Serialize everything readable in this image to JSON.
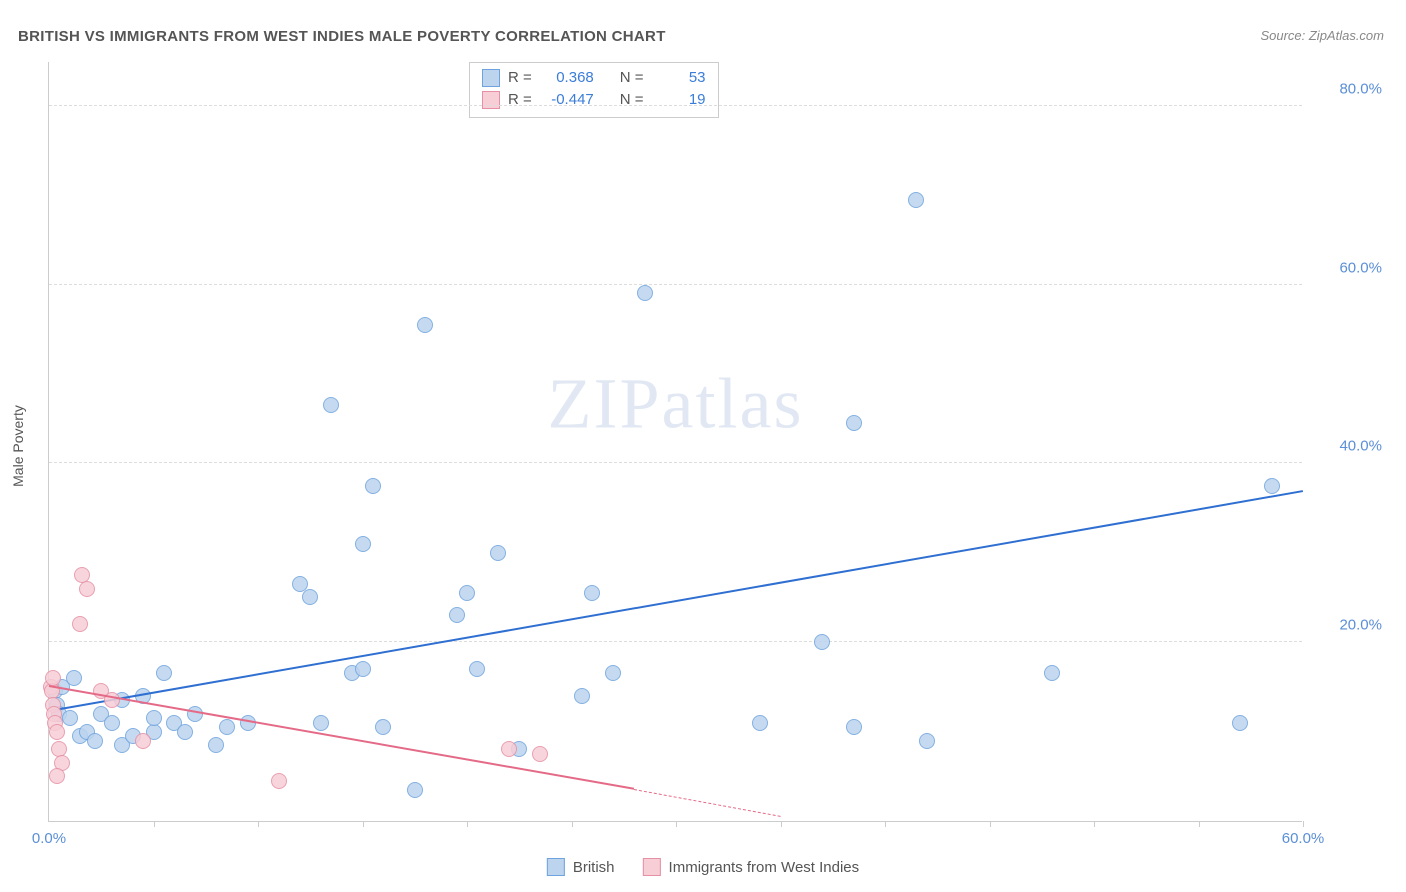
{
  "title": "BRITISH VS IMMIGRANTS FROM WEST INDIES MALE POVERTY CORRELATION CHART",
  "source_prefix": "Source: ",
  "source_name": "ZipAtlas.com",
  "watermark": "ZIPatlas",
  "ylabel": "Male Poverty",
  "chart": {
    "type": "scatter",
    "xlim": [
      0,
      60
    ],
    "ylim": [
      0,
      85
    ],
    "x_tick_step": 5,
    "x_tick_labels": {
      "0": "0.0%",
      "60": "60.0%"
    },
    "y_ticks": [
      20,
      40,
      60,
      80
    ],
    "y_tick_labels": [
      "20.0%",
      "40.0%",
      "60.0%",
      "80.0%"
    ],
    "grid_color": "#dddddd",
    "axis_color": "#cccccc",
    "background_color": "#ffffff",
    "point_radius": 8,
    "point_stroke_width": 1.5,
    "series": [
      {
        "name": "British",
        "fill": "#bcd4ee",
        "stroke": "#6ea3de",
        "r_value": "0.368",
        "n_value": "53",
        "trend": {
          "x1": 0,
          "y1": 12.2,
          "x2": 60,
          "y2": 36.8,
          "color": "#2e6fd1",
          "width": 2
        },
        "points": [
          [
            0.3,
            14.5
          ],
          [
            0.4,
            13.0
          ],
          [
            0.5,
            12.0
          ],
          [
            0.6,
            15
          ],
          [
            1.0,
            11.5
          ],
          [
            1.2,
            16.0
          ],
          [
            1.5,
            9.5
          ],
          [
            1.8,
            10.0
          ],
          [
            2.2,
            9.0
          ],
          [
            2.5,
            12.0
          ],
          [
            3.0,
            11.0
          ],
          [
            3.5,
            8.5
          ],
          [
            3.5,
            13.5
          ],
          [
            4.0,
            9.5
          ],
          [
            4.5,
            14.0
          ],
          [
            5.0,
            10.0
          ],
          [
            5.0,
            11.5
          ],
          [
            5.5,
            16.5
          ],
          [
            6.0,
            11.0
          ],
          [
            6.5,
            10.0
          ],
          [
            7.0,
            12.0
          ],
          [
            8.0,
            8.5
          ],
          [
            8.5,
            10.5
          ],
          [
            9.5,
            11.0
          ],
          [
            12.0,
            26.5
          ],
          [
            12.5,
            25.0
          ],
          [
            13.0,
            11.0
          ],
          [
            13.5,
            46.5
          ],
          [
            14.5,
            16.5
          ],
          [
            15.0,
            17.0
          ],
          [
            15.0,
            31.0
          ],
          [
            15.5,
            37.5
          ],
          [
            16.0,
            10.5
          ],
          [
            17.5,
            3.5
          ],
          [
            18.0,
            55.5
          ],
          [
            19.5,
            23.0
          ],
          [
            20.0,
            25.5
          ],
          [
            20.5,
            17.0
          ],
          [
            21.5,
            30.0
          ],
          [
            22.5,
            8.0
          ],
          [
            25.5,
            14.0
          ],
          [
            26.0,
            25.5
          ],
          [
            27.0,
            16.5
          ],
          [
            28.5,
            59.0
          ],
          [
            34.0,
            11.0
          ],
          [
            37.0,
            20.0
          ],
          [
            38.5,
            44.5
          ],
          [
            38.5,
            10.5
          ],
          [
            41.5,
            69.5
          ],
          [
            42.0,
            9.0
          ],
          [
            48.0,
            16.5
          ],
          [
            57.0,
            11.0
          ],
          [
            58.5,
            37.5
          ]
        ]
      },
      {
        "name": "Immigrants from West Indies",
        "fill": "#f7cdd6",
        "stroke": "#e590a4",
        "r_value": "-0.447",
        "n_value": "19",
        "trend_solid": {
          "x1": 0,
          "y1": 15.0,
          "x2": 28,
          "y2": 3.5,
          "color": "#e46a87",
          "width": 1.5
        },
        "trend_dash": {
          "x1": 28,
          "y1": 3.5,
          "x2": 35,
          "y2": 0.5,
          "color": "#e46a87",
          "width": 1.5
        },
        "points": [
          [
            0.1,
            15.0
          ],
          [
            0.15,
            14.5
          ],
          [
            0.2,
            13.0
          ],
          [
            0.2,
            16.0
          ],
          [
            0.25,
            12.0
          ],
          [
            0.3,
            11.0
          ],
          [
            0.4,
            10.0
          ],
          [
            0.5,
            8.0
          ],
          [
            0.6,
            6.5
          ],
          [
            0.4,
            5.0
          ],
          [
            1.5,
            22.0
          ],
          [
            1.6,
            27.5
          ],
          [
            1.8,
            26.0
          ],
          [
            2.5,
            14.5
          ],
          [
            3.0,
            13.5
          ],
          [
            4.5,
            9.0
          ],
          [
            11.0,
            4.5
          ],
          [
            22.0,
            8.0
          ],
          [
            23.5,
            7.5
          ]
        ]
      }
    ]
  },
  "bottom_legend": [
    {
      "label": "British",
      "fill": "#bcd4ee",
      "stroke": "#6ea3de"
    },
    {
      "label": "Immigrants from West Indies",
      "fill": "#f7cdd6",
      "stroke": "#e590a4"
    }
  ],
  "stats_labels": {
    "r": "R =",
    "n": "N ="
  }
}
